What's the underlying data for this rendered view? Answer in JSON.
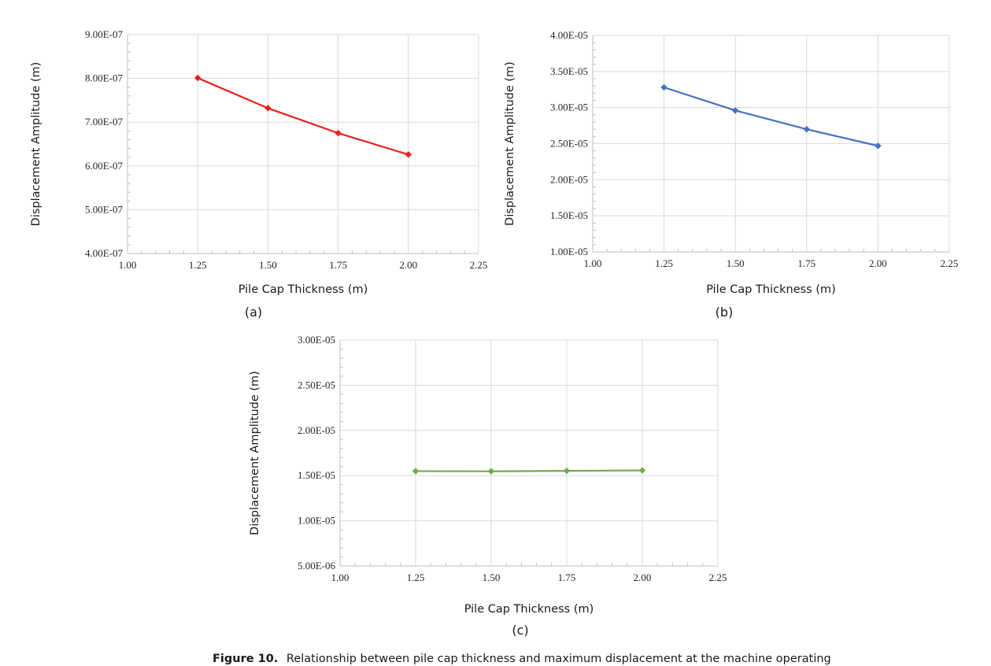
{
  "chart_data": [
    {
      "type": "line",
      "panel_label": "(a)",
      "xlabel": "Pile Cap Thickness (m)",
      "ylabel": "Displacement Amplitude (m)",
      "xlim": [
        1.0,
        2.25
      ],
      "ylim": [
        4e-07,
        9e-07
      ],
      "x_ticks": [
        1.0,
        1.25,
        1.5,
        1.75,
        2.0,
        2.25
      ],
      "x_tick_labels": [
        "1.00",
        "1.25",
        "1.50",
        "1.75",
        "2.00",
        "2.25"
      ],
      "y_ticks": [
        4e-07,
        5e-07,
        6e-07,
        7e-07,
        8e-07,
        9e-07
      ],
      "y_tick_labels": [
        "4.00E-07",
        "5.00E-07",
        "6.00E-07",
        "7.00E-07",
        "8.00E-07",
        "9.00E-07"
      ],
      "grid": true,
      "series": [
        {
          "color": "#e8211d",
          "x": [
            1.25,
            1.5,
            1.75,
            2.0
          ],
          "y": [
            8.01e-07,
            7.32e-07,
            6.75e-07,
            6.26e-07
          ]
        }
      ]
    },
    {
      "type": "line",
      "panel_label": "(b)",
      "xlabel": "Pile Cap Thickness (m)",
      "ylabel": "Displacement Amplitude (m)",
      "xlim": [
        1.0,
        2.25
      ],
      "ylim": [
        1e-05,
        4e-05
      ],
      "x_ticks": [
        1.0,
        1.25,
        1.5,
        1.75,
        2.0,
        2.25
      ],
      "x_tick_labels": [
        "1.00",
        "1.25",
        "1.50",
        "1.75",
        "2.00",
        "2.25"
      ],
      "y_ticks": [
        1e-05,
        1.5e-05,
        2e-05,
        2.5e-05,
        3e-05,
        3.5e-05,
        4e-05
      ],
      "y_tick_labels": [
        "1.00E-05",
        "1.50E-05",
        "2.00E-05",
        "2.50E-05",
        "3.00E-05",
        "3.50E-05",
        "4.00E-05"
      ],
      "grid": true,
      "series": [
        {
          "color": "#4472c4",
          "x": [
            1.25,
            1.5,
            1.75,
            2.0
          ],
          "y": [
            3.28e-05,
            2.96e-05,
            2.7e-05,
            2.47e-05
          ]
        }
      ]
    },
    {
      "type": "line",
      "panel_label": "(c)",
      "xlabel": "Pile Cap Thickness (m)",
      "ylabel": "Displacement Amplitude (m)",
      "xlim": [
        1.0,
        2.25
      ],
      "ylim": [
        5e-06,
        3e-05
      ],
      "x_ticks": [
        1.0,
        1.25,
        1.5,
        1.75,
        2.0,
        2.25
      ],
      "x_tick_labels": [
        "1.00",
        "1.25",
        "1.50",
        "1.75",
        "2.00",
        "2.25"
      ],
      "y_ticks": [
        5e-06,
        1e-05,
        1.5e-05,
        2e-05,
        2.5e-05,
        3e-05
      ],
      "y_tick_labels": [
        "5.00E-06",
        "1.00E-05",
        "1.50E-05",
        "2.00E-05",
        "2.50E-05",
        "3.00E-05"
      ],
      "grid": true,
      "series": [
        {
          "color": "#70ad47",
          "x": [
            1.25,
            1.5,
            1.75,
            2.0
          ],
          "y": [
            1.55e-05,
            1.548e-05,
            1.553e-05,
            1.558e-05
          ]
        }
      ]
    }
  ],
  "caption": {
    "label": "Figure 10.",
    "text": "Relationship between pile cap thickness and maximum displacement at the machine operating"
  }
}
